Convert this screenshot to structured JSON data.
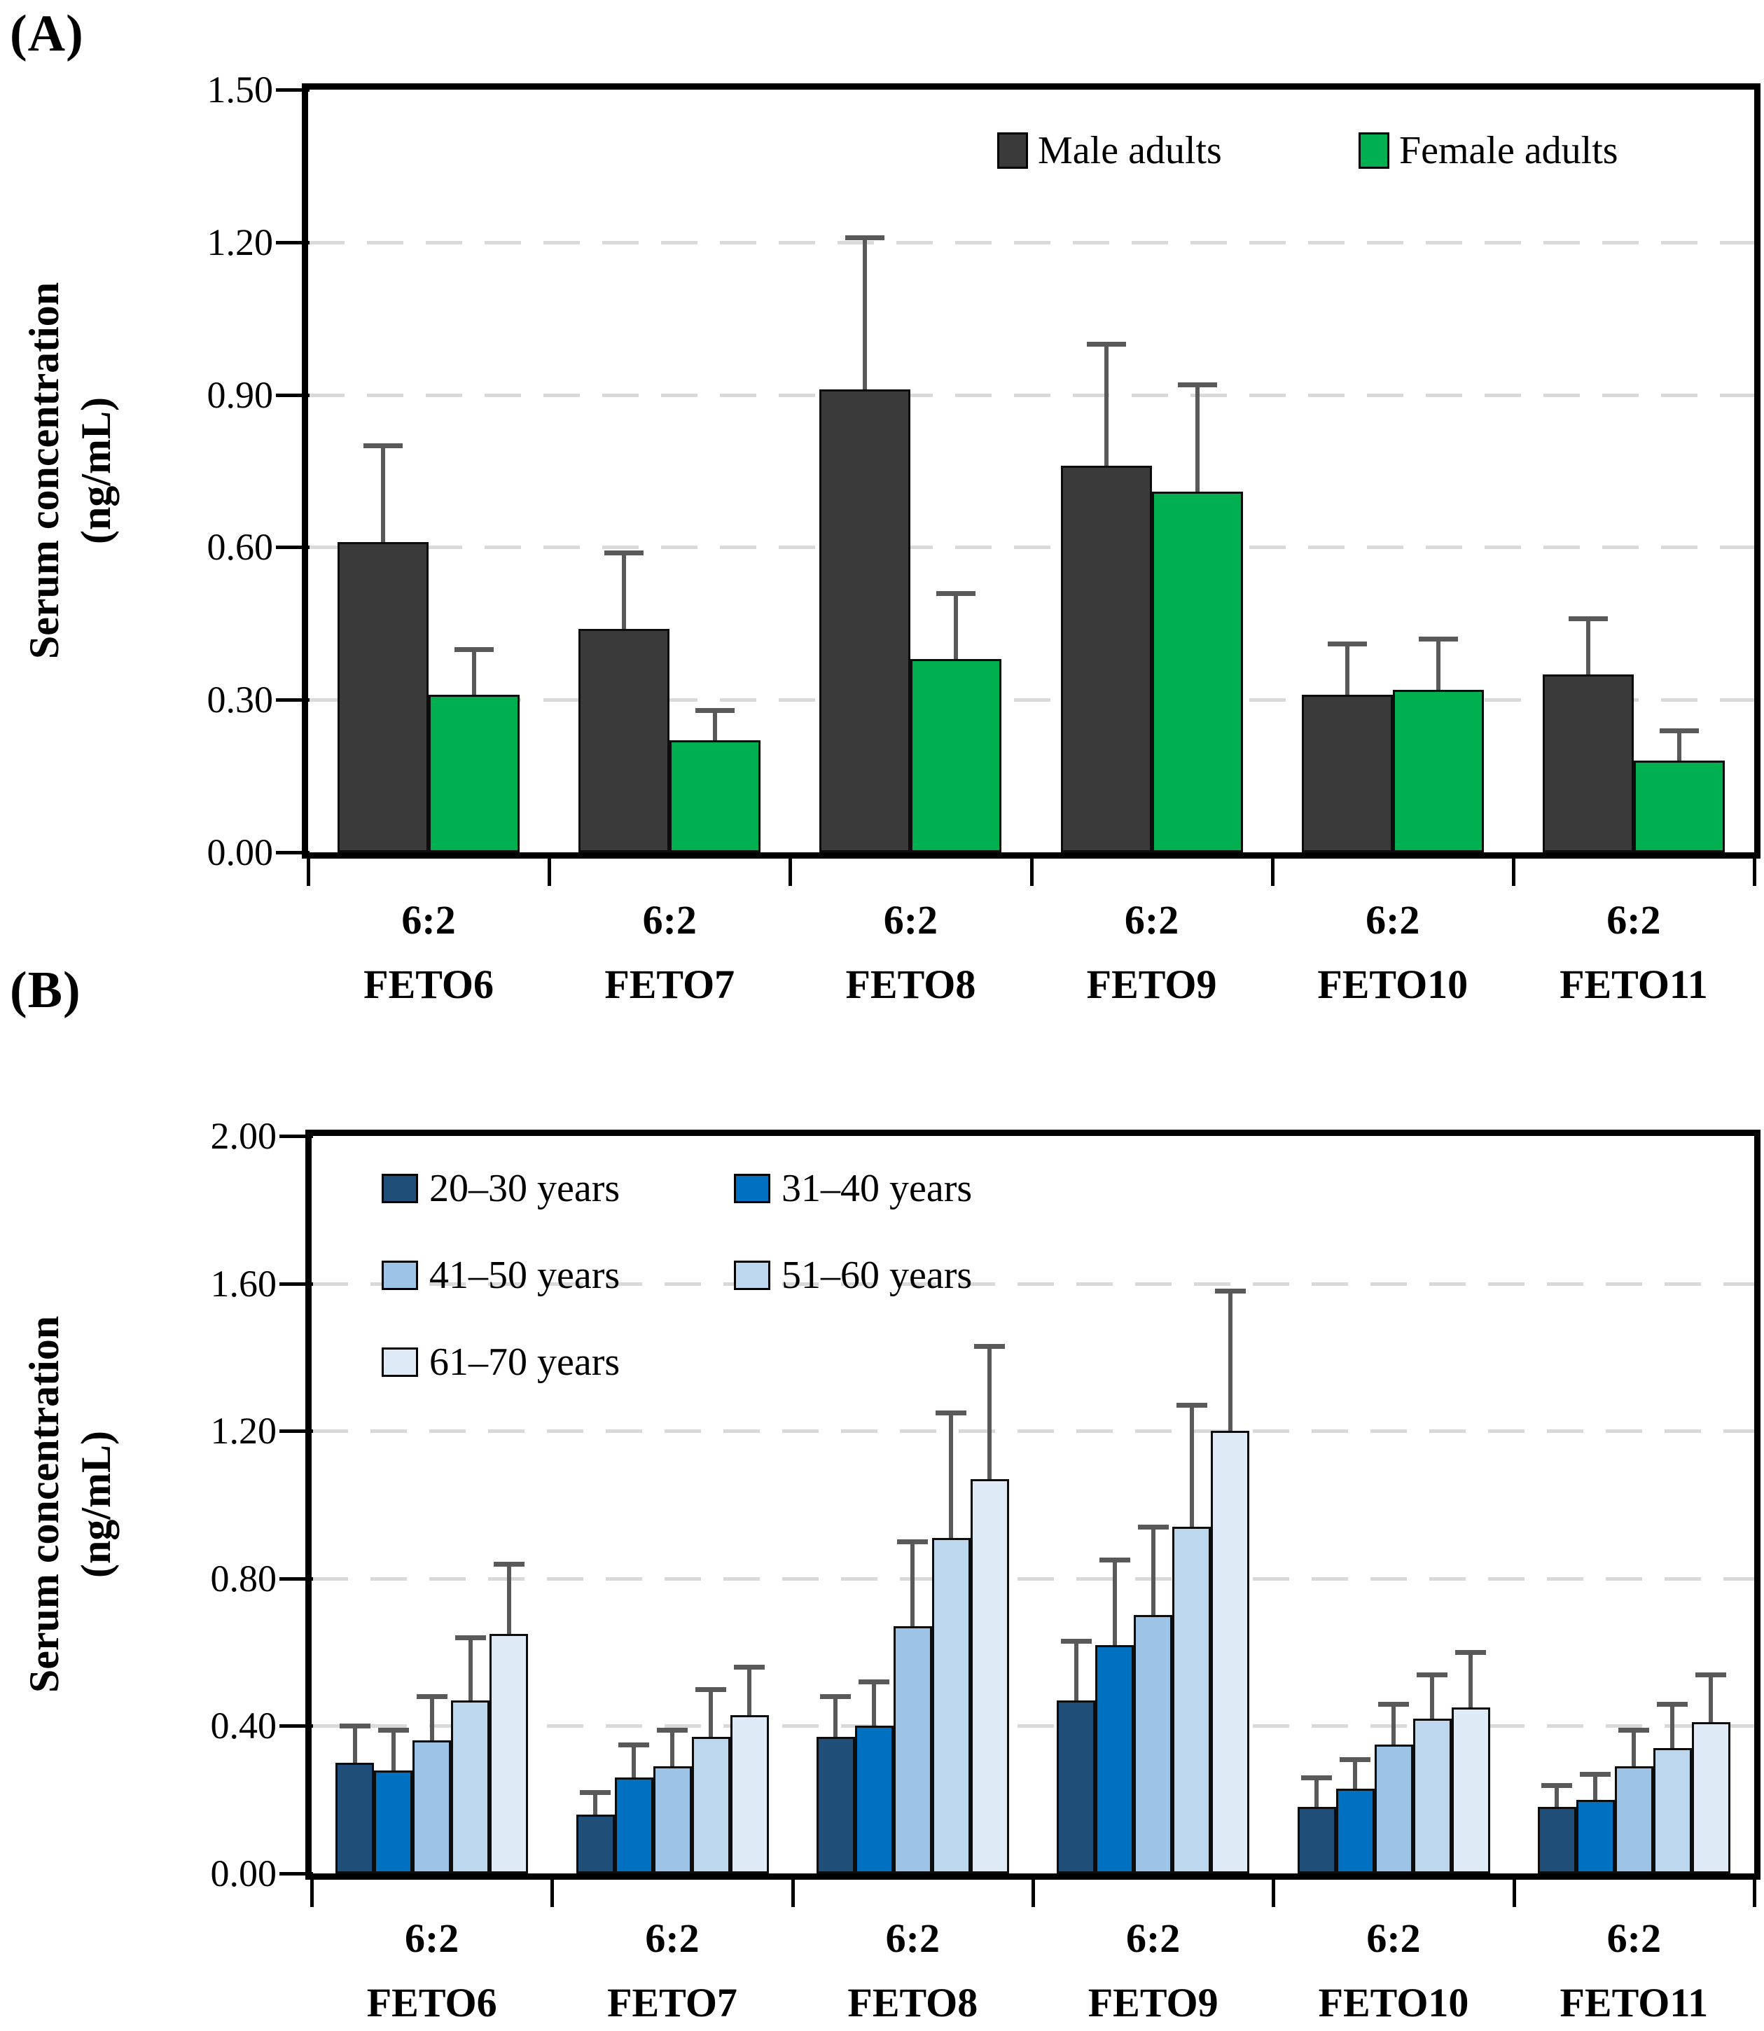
{
  "chart_data": [
    {
      "type": "bar",
      "panel_label": "(A)",
      "title": "",
      "ylabel": "Serum concentration (ng/mL)",
      "ylabel_line1": "Serum concentration",
      "ylabel_line2": "(ng/mL)",
      "categories": [
        "6:2 FETO6",
        "6:2 FETO7",
        "6:2 FETO8",
        "6:2 FETO9",
        "6:2 FETO10",
        "6:2 FETO11"
      ],
      "ylim": [
        0,
        1.5
      ],
      "ytick_step": 0.3,
      "ytick_labels": [
        "0.00",
        "0.30",
        "0.60",
        "0.90",
        "1.20",
        "1.50"
      ],
      "grid": "horizontal-dashed",
      "grid_color": "#d9d9d9",
      "error_bars": "plus-only",
      "error_bar_color": "#595959",
      "legend_position": "top-right-inside",
      "series": [
        {
          "name": "Male adults",
          "color": "#3a3a3a",
          "values": [
            0.61,
            0.44,
            0.91,
            0.76,
            0.31,
            0.35
          ],
          "error_plus": [
            0.19,
            0.15,
            0.3,
            0.24,
            0.1,
            0.11
          ]
        },
        {
          "name": "Female adults",
          "color": "#00b050",
          "values": [
            0.31,
            0.22,
            0.38,
            0.71,
            0.32,
            0.18
          ],
          "error_plus": [
            0.09,
            0.06,
            0.13,
            0.21,
            0.1,
            0.06
          ]
        }
      ]
    },
    {
      "type": "bar",
      "panel_label": "(B)",
      "title": "",
      "ylabel": "Serum concentration (ng/mL)",
      "ylabel_line1": "Serum concentration",
      "ylabel_line2": "(ng/mL)",
      "categories": [
        "6:2 FETO6",
        "6:2 FETO7",
        "6:2 FETO8",
        "6:2 FETO9",
        "6:2 FETO10",
        "6:2 FETO11"
      ],
      "ylim": [
        0,
        2.0
      ],
      "ytick_step": 0.4,
      "ytick_labels": [
        "0.00",
        "0.40",
        "0.80",
        "1.20",
        "1.60",
        "2.00"
      ],
      "grid": "horizontal-dashed",
      "grid_color": "#d9d9d9",
      "error_bars": "plus-only",
      "error_bar_color": "#595959",
      "legend_position": "top-left-inside",
      "series": [
        {
          "name": "20–30 years",
          "color": "#1f4e79",
          "values": [
            0.3,
            0.16,
            0.37,
            0.47,
            0.18,
            0.18
          ],
          "error_plus": [
            0.1,
            0.06,
            0.11,
            0.16,
            0.08,
            0.06
          ]
        },
        {
          "name": "31–40 years",
          "color": "#0070c0",
          "values": [
            0.28,
            0.26,
            0.4,
            0.62,
            0.23,
            0.2
          ],
          "error_plus": [
            0.11,
            0.09,
            0.12,
            0.23,
            0.08,
            0.07
          ]
        },
        {
          "name": "41–50 years",
          "color": "#9dc3e6",
          "values": [
            0.36,
            0.29,
            0.67,
            0.7,
            0.35,
            0.29
          ],
          "error_plus": [
            0.12,
            0.1,
            0.23,
            0.24,
            0.11,
            0.1
          ]
        },
        {
          "name": "51–60 years",
          "color": "#bdd7ee",
          "values": [
            0.47,
            0.37,
            0.91,
            0.94,
            0.42,
            0.34
          ],
          "error_plus": [
            0.17,
            0.13,
            0.34,
            0.33,
            0.12,
            0.12
          ]
        },
        {
          "name": "61–70 years",
          "color": "#deebf7",
          "values": [
            0.65,
            0.43,
            1.07,
            1.2,
            0.45,
            0.41
          ],
          "error_plus": [
            0.19,
            0.13,
            0.36,
            0.38,
            0.15,
            0.13
          ]
        }
      ]
    }
  ]
}
